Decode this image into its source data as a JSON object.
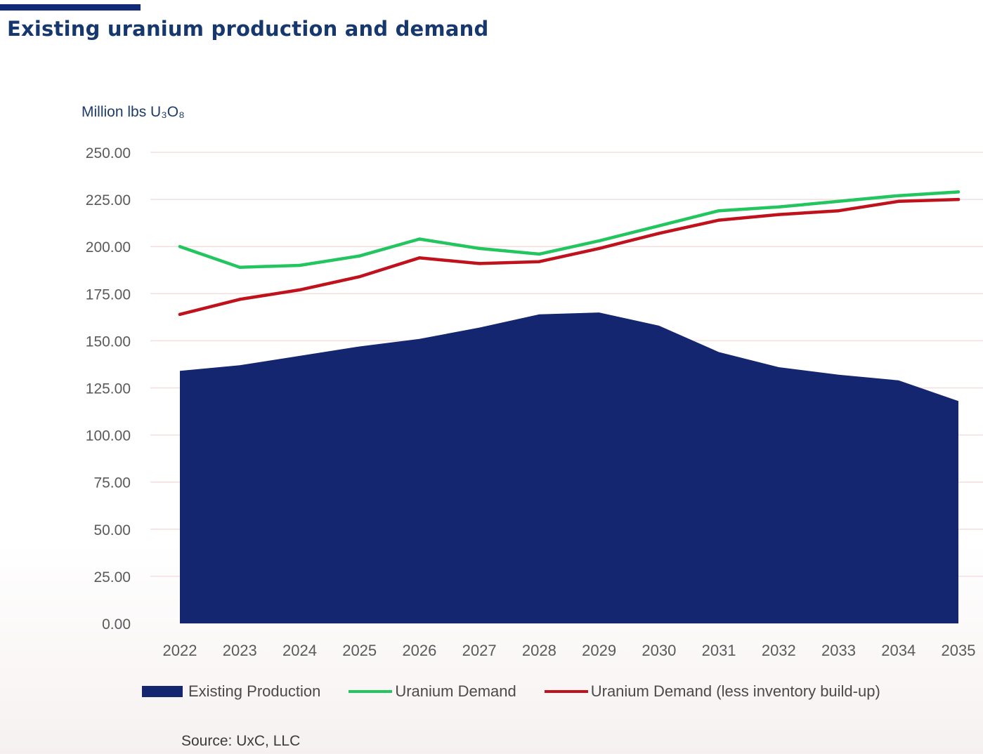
{
  "header": {
    "title": "Existing uranium production and demand"
  },
  "source": "Source: UxC, LLC",
  "colors": {
    "accent_bar": "#112a78",
    "production": "#13266f",
    "demand": "#22c55e",
    "demand_less_inventory": "#c0121c",
    "gridline": "#f3dede",
    "axis_text": "#5a5a5a"
  },
  "chart_data": {
    "type": "area",
    "title": "Existing uranium production and demand",
    "ylabel": "Million lbs U₃O₈",
    "xlabel": "",
    "ylim": [
      0,
      250
    ],
    "yticks": [
      "0.00",
      "25.00",
      "50.00",
      "75.00",
      "100.00",
      "125.00",
      "150.00",
      "175.00",
      "200.00",
      "225.00",
      "250.00"
    ],
    "grid": true,
    "legend_position": "bottom",
    "x": [
      "2022",
      "2023",
      "2024",
      "2025",
      "2026",
      "2027",
      "2028",
      "2029",
      "2030",
      "2031",
      "2032",
      "2033",
      "2034",
      "2035"
    ],
    "series": [
      {
        "name": "Existing Production",
        "kind": "area",
        "color": "#13266f",
        "values": [
          134,
          137,
          142,
          147,
          151,
          157,
          164,
          165,
          158,
          144,
          136,
          132,
          129,
          118
        ]
      },
      {
        "name": "Uranium Demand",
        "kind": "line",
        "color": "#22c55e",
        "values": [
          200,
          189,
          190,
          195,
          204,
          199,
          196,
          203,
          211,
          219,
          221,
          224,
          227,
          229
        ]
      },
      {
        "name": "Uranium Demand (less inventory build-up)",
        "kind": "line",
        "color": "#c0121c",
        "values": [
          164,
          172,
          177,
          184,
          194,
          191,
          192,
          199,
          207,
          214,
          217,
          219,
          224,
          225
        ]
      }
    ]
  }
}
